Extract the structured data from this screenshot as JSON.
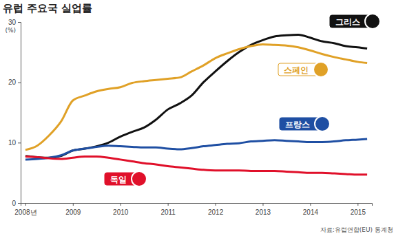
{
  "chart_data": {
    "type": "line",
    "title": "유럽 주요국 실업률",
    "ylabel": "(%)",
    "source": "자료:유럽연합(EU) 통계청",
    "x": [
      2008,
      2008.25,
      2008.5,
      2008.75,
      2009,
      2009.25,
      2009.5,
      2009.75,
      2010,
      2010.25,
      2010.5,
      2010.75,
      2011,
      2011.25,
      2011.5,
      2011.75,
      2012,
      2012.25,
      2012.5,
      2012.75,
      2013,
      2013.25,
      2013.5,
      2013.75,
      2014,
      2014.25,
      2014.5,
      2014.75,
      2015,
      2015.2
    ],
    "series": [
      {
        "name": "그리스",
        "color": "#111111",
        "values": [
          7.8,
          7.6,
          7.5,
          7.8,
          8.7,
          9.0,
          9.4,
          10.0,
          11.0,
          11.8,
          12.5,
          13.8,
          15.5,
          16.5,
          17.8,
          20.0,
          21.8,
          23.5,
          25.0,
          26.2,
          27.0,
          27.6,
          27.8,
          27.9,
          27.4,
          26.8,
          26.5,
          26.0,
          25.8,
          25.6
        ]
      },
      {
        "name": "스페인",
        "color": "#e0a127",
        "values": [
          8.8,
          9.5,
          11.2,
          13.5,
          17.0,
          17.8,
          18.5,
          18.9,
          19.2,
          19.9,
          20.2,
          20.4,
          20.6,
          20.8,
          21.8,
          22.8,
          24.0,
          24.8,
          25.5,
          26.0,
          26.3,
          26.2,
          26.1,
          25.8,
          25.3,
          24.7,
          24.2,
          23.8,
          23.4,
          23.2
        ]
      },
      {
        "name": "프랑스",
        "color": "#1f4fa3",
        "values": [
          7.2,
          7.3,
          7.5,
          7.9,
          8.7,
          9.0,
          9.3,
          9.5,
          9.4,
          9.3,
          9.2,
          9.2,
          9.0,
          8.9,
          9.1,
          9.4,
          9.6,
          9.8,
          9.9,
          10.2,
          10.3,
          10.4,
          10.3,
          10.2,
          10.1,
          10.1,
          10.2,
          10.4,
          10.5,
          10.6
        ]
      },
      {
        "name": "독일",
        "color": "#e0102a",
        "values": [
          7.7,
          7.6,
          7.4,
          7.3,
          7.5,
          7.7,
          7.7,
          7.5,
          7.2,
          6.9,
          6.6,
          6.4,
          6.1,
          5.9,
          5.7,
          5.5,
          5.4,
          5.4,
          5.4,
          5.3,
          5.3,
          5.3,
          5.2,
          5.1,
          5.0,
          5.0,
          4.9,
          4.8,
          4.7,
          4.7
        ]
      }
    ],
    "xlim": [
      2007.9,
      2015.3
    ],
    "xticks": [
      {
        "value": 2008,
        "label": "2008년"
      },
      2009,
      2010,
      2011,
      2012,
      2013,
      2014,
      2015
    ],
    "ylim": [
      0,
      30
    ],
    "yticks": [
      0,
      10,
      20,
      30
    ],
    "grid": false
  }
}
